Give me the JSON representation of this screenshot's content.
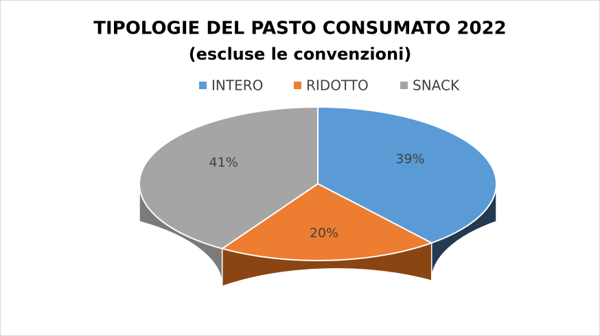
{
  "chart_data": {
    "type": "pie3d",
    "title": "TIPOLOGIE DEL PASTO CONSUMATO 2022",
    "subtitle": "(escluse le convenzioni)",
    "categories": [
      "INTERO",
      "RIDOTTO",
      "SNACK"
    ],
    "values": [
      39,
      20,
      41
    ],
    "value_labels": [
      "39%",
      "20%",
      "41%"
    ],
    "colors": [
      "#5b9bd5",
      "#ed7d31",
      "#a5a5a5"
    ],
    "side_colors": [
      "#223a52",
      "#8a4513",
      "#7b7b7b"
    ],
    "legend": "top"
  }
}
